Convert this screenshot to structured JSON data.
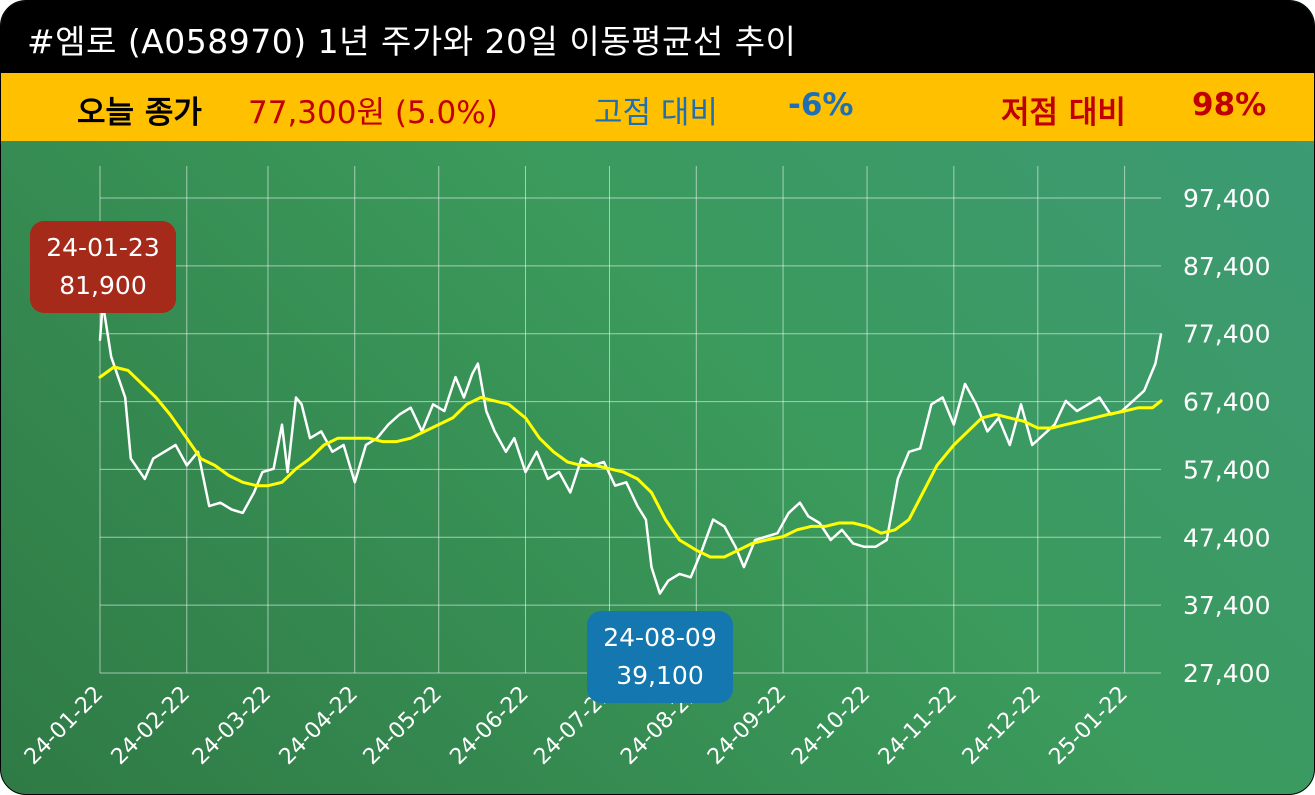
{
  "header": {
    "title": "#엠로 (A058970) 1년 주가와 20일 이동평균선 추이"
  },
  "stats": {
    "close_label": "오늘 종가",
    "close_value": "77,300원 (5.0%)",
    "high_label": "고점 대비",
    "high_value": "-6%",
    "low_label": "저점 대비",
    "low_value": "98%"
  },
  "colors": {
    "header_bg": "#000000",
    "stat_bg": "#ffc000",
    "price_line": "#ffffff",
    "ma_line": "#ffff00",
    "high_box": "#a52a1a",
    "low_box": "#1477b0",
    "close_value": "#c00000",
    "high_text": "#1f6fb5"
  },
  "chart_data": {
    "type": "line",
    "title": "#엠로 (A058970) 1년 주가와 20일 이동평균선 추이",
    "xlabel": "",
    "ylabel": "",
    "x_ticks": [
      "24-01-22",
      "24-02-22",
      "24-03-22",
      "24-04-22",
      "24-05-22",
      "24-06-22",
      "24-07-22",
      "24-08-22",
      "24-09-22",
      "24-10-22",
      "24-11-22",
      "24-12-22",
      "25-01-22"
    ],
    "y_ticks": [
      "97,400",
      "87,400",
      "77,400",
      "67,400",
      "57,400",
      "47,400",
      "37,400",
      "27,400"
    ],
    "ylim": [
      27400,
      97400
    ],
    "grid": true,
    "series": [
      {
        "name": "",
        "color": "#ffffff",
        "values": [
          [
            "24-01-22",
            76500
          ],
          [
            "24-01-23",
            81900
          ],
          [
            "24-01-26",
            74000
          ],
          [
            "24-01-31",
            68000
          ],
          [
            "24-02-02",
            59000
          ],
          [
            "24-02-07",
            56000
          ],
          [
            "24-02-10",
            59000
          ],
          [
            "24-02-14",
            60000
          ],
          [
            "24-02-18",
            61000
          ],
          [
            "24-02-22",
            58000
          ],
          [
            "24-02-26",
            60000
          ],
          [
            "24-03-01",
            52000
          ],
          [
            "24-03-05",
            52500
          ],
          [
            "24-03-09",
            51500
          ],
          [
            "24-03-13",
            51000
          ],
          [
            "24-03-17",
            54000
          ],
          [
            "24-03-20",
            57000
          ],
          [
            "24-03-24",
            57500
          ],
          [
            "24-03-27",
            64000
          ],
          [
            "24-03-29",
            57000
          ],
          [
            "24-04-01",
            68000
          ],
          [
            "24-04-03",
            67000
          ],
          [
            "24-04-06",
            62000
          ],
          [
            "24-04-10",
            63000
          ],
          [
            "24-04-14",
            60000
          ],
          [
            "24-04-18",
            61000
          ],
          [
            "24-04-22",
            55500
          ],
          [
            "24-04-26",
            61000
          ],
          [
            "24-04-30",
            62000
          ],
          [
            "24-05-04",
            64000
          ],
          [
            "24-05-08",
            65500
          ],
          [
            "24-05-12",
            66500
          ],
          [
            "24-05-16",
            63000
          ],
          [
            "24-05-20",
            67000
          ],
          [
            "24-05-24",
            66000
          ],
          [
            "24-05-28",
            71000
          ],
          [
            "24-05-31",
            68000
          ],
          [
            "24-06-03",
            71500
          ],
          [
            "24-06-05",
            73000
          ],
          [
            "24-06-08",
            66000
          ],
          [
            "24-06-11",
            63000
          ],
          [
            "24-06-15",
            60000
          ],
          [
            "24-06-18",
            62000
          ],
          [
            "24-06-22",
            57000
          ],
          [
            "24-06-26",
            60000
          ],
          [
            "24-06-30",
            56000
          ],
          [
            "24-07-04",
            57000
          ],
          [
            "24-07-08",
            54000
          ],
          [
            "24-07-12",
            59000
          ],
          [
            "24-07-16",
            58000
          ],
          [
            "24-07-20",
            58500
          ],
          [
            "24-07-24",
            55000
          ],
          [
            "24-07-28",
            55500
          ],
          [
            "24-08-01",
            52000
          ],
          [
            "24-08-04",
            50000
          ],
          [
            "24-08-06",
            43000
          ],
          [
            "24-08-09",
            39100
          ],
          [
            "24-08-12",
            41000
          ],
          [
            "24-08-16",
            42000
          ],
          [
            "24-08-20",
            41500
          ],
          [
            "24-08-24",
            45500
          ],
          [
            "24-08-28",
            50000
          ],
          [
            "24-09-01",
            49000
          ],
          [
            "24-09-05",
            46000
          ],
          [
            "24-09-08",
            43000
          ],
          [
            "24-09-12",
            47000
          ],
          [
            "24-09-16",
            47500
          ],
          [
            "24-09-20",
            48000
          ],
          [
            "24-09-24",
            51000
          ],
          [
            "24-09-28",
            52500
          ],
          [
            "24-10-01",
            50500
          ],
          [
            "24-10-05",
            49500
          ],
          [
            "24-10-09",
            47000
          ],
          [
            "24-10-13",
            48500
          ],
          [
            "24-10-17",
            46500
          ],
          [
            "24-10-21",
            46000
          ],
          [
            "24-10-25",
            46000
          ],
          [
            "24-10-29",
            47000
          ],
          [
            "24-11-02",
            56000
          ],
          [
            "24-11-06",
            60000
          ],
          [
            "24-11-10",
            60500
          ],
          [
            "24-11-14",
            67000
          ],
          [
            "24-11-18",
            68000
          ],
          [
            "24-11-22",
            64000
          ],
          [
            "24-11-26",
            70000
          ],
          [
            "24-11-30",
            67000
          ],
          [
            "24-12-04",
            63000
          ],
          [
            "24-12-08",
            65000
          ],
          [
            "24-12-12",
            61000
          ],
          [
            "24-12-16",
            67000
          ],
          [
            "24-12-20",
            61000
          ],
          [
            "24-12-24",
            62500
          ],
          [
            "24-12-28",
            64000
          ],
          [
            "25-01-01",
            67500
          ],
          [
            "25-01-05",
            66000
          ],
          [
            "25-01-09",
            67000
          ],
          [
            "25-01-13",
            68000
          ],
          [
            "25-01-17",
            65500
          ],
          [
            "25-01-21",
            66000
          ],
          [
            "25-01-25",
            67500
          ],
          [
            "25-01-29",
            69000
          ],
          [
            "25-02-02",
            73000
          ],
          [
            "25-02-04",
            77300
          ]
        ]
      },
      {
        "name": "",
        "color": "#ffff00",
        "values": [
          [
            "24-01-22",
            71000
          ],
          [
            "24-01-27",
            72500
          ],
          [
            "24-02-01",
            72000
          ],
          [
            "24-02-06",
            70000
          ],
          [
            "24-02-11",
            68000
          ],
          [
            "24-02-16",
            65500
          ],
          [
            "24-02-22",
            62000
          ],
          [
            "24-02-27",
            59000
          ],
          [
            "24-03-03",
            58000
          ],
          [
            "24-03-08",
            56500
          ],
          [
            "24-03-13",
            55500
          ],
          [
            "24-03-18",
            55000
          ],
          [
            "24-03-22",
            55000
          ],
          [
            "24-03-27",
            55500
          ],
          [
            "24-04-01",
            57500
          ],
          [
            "24-04-06",
            59000
          ],
          [
            "24-04-11",
            61000
          ],
          [
            "24-04-16",
            62000
          ],
          [
            "24-04-22",
            62000
          ],
          [
            "24-04-27",
            62000
          ],
          [
            "24-05-02",
            61500
          ],
          [
            "24-05-07",
            61500
          ],
          [
            "24-05-12",
            62000
          ],
          [
            "24-05-17",
            63000
          ],
          [
            "24-05-22",
            64000
          ],
          [
            "24-05-27",
            65000
          ],
          [
            "24-06-01",
            67000
          ],
          [
            "24-06-06",
            68000
          ],
          [
            "24-06-11",
            67500
          ],
          [
            "24-06-16",
            67000
          ],
          [
            "24-06-22",
            65000
          ],
          [
            "24-06-27",
            62000
          ],
          [
            "24-07-02",
            60000
          ],
          [
            "24-07-07",
            58500
          ],
          [
            "24-07-12",
            58000
          ],
          [
            "24-07-17",
            58000
          ],
          [
            "24-07-22",
            57500
          ],
          [
            "24-07-27",
            57000
          ],
          [
            "24-08-01",
            56000
          ],
          [
            "24-08-06",
            54000
          ],
          [
            "24-08-11",
            50000
          ],
          [
            "24-08-16",
            47000
          ],
          [
            "24-08-22",
            45500
          ],
          [
            "24-08-27",
            44500
          ],
          [
            "24-09-01",
            44500
          ],
          [
            "24-09-06",
            45500
          ],
          [
            "24-09-11",
            46500
          ],
          [
            "24-09-16",
            47000
          ],
          [
            "24-09-22",
            47500
          ],
          [
            "24-09-27",
            48500
          ],
          [
            "24-10-02",
            49000
          ],
          [
            "24-10-07",
            49000
          ],
          [
            "24-10-12",
            49500
          ],
          [
            "24-10-17",
            49500
          ],
          [
            "24-10-22",
            49000
          ],
          [
            "24-10-27",
            48000
          ],
          [
            "24-11-01",
            48500
          ],
          [
            "24-11-06",
            50000
          ],
          [
            "24-11-11",
            54000
          ],
          [
            "24-11-16",
            58000
          ],
          [
            "24-11-22",
            61000
          ],
          [
            "24-11-27",
            63000
          ],
          [
            "24-12-02",
            65000
          ],
          [
            "24-12-07",
            65500
          ],
          [
            "24-12-12",
            65000
          ],
          [
            "24-12-17",
            64500
          ],
          [
            "24-12-22",
            63500
          ],
          [
            "24-12-27",
            63500
          ],
          [
            "25-01-01",
            64000
          ],
          [
            "25-01-06",
            64500
          ],
          [
            "25-01-11",
            65000
          ],
          [
            "25-01-16",
            65500
          ],
          [
            "25-01-22",
            66000
          ],
          [
            "25-01-27",
            66500
          ],
          [
            "25-02-01",
            66500
          ],
          [
            "25-02-04",
            67500
          ]
        ]
      }
    ],
    "annotations": [
      {
        "date": "24-01-23",
        "value": "81,900",
        "kind": "high"
      },
      {
        "date": "24-08-09",
        "value": "39,100",
        "kind": "low"
      }
    ]
  }
}
